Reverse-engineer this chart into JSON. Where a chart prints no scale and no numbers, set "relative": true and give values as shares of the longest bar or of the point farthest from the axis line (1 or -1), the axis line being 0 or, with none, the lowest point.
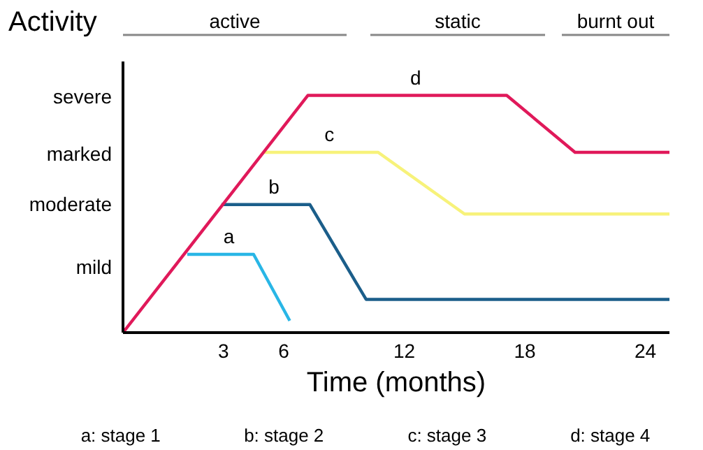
{
  "chart_data": {
    "type": "line",
    "ylabel": "Activity",
    "xlabel": "Time (months)",
    "relative": true,
    "xlim": [
      -2,
      25.2
    ],
    "xticks": [
      3,
      6,
      12,
      18,
      24
    ],
    "series": [
      {
        "name": "a",
        "color": "#29b6e6",
        "x": [
          1.2,
          4.5,
          6.3
        ],
        "values": [
          0.33,
          0.33,
          0.05
        ]
      },
      {
        "name": "b",
        "color": "#1b5e8a",
        "x": [
          2.9,
          7.3,
          10.1,
          25.2
        ],
        "values": [
          0.54,
          0.54,
          0.14,
          0.14
        ]
      },
      {
        "name": "c",
        "color": "#f7f27a",
        "x": [
          5.0,
          10.7,
          15.0,
          25.2
        ],
        "values": [
          0.76,
          0.76,
          0.5,
          0.5
        ]
      },
      {
        "name": "d",
        "color": "#e0195a",
        "x": [
          -2,
          7.2,
          17.1,
          20.5,
          25.2
        ],
        "values": [
          0,
          1,
          1,
          0.76,
          0.76
        ]
      }
    ],
    "annotations": [
      "active",
      "static",
      "burnt out",
      "severe",
      "marked",
      "moderate",
      "mild",
      "a: stage 1",
      "b: stage 2",
      "c: stage 3",
      "d: stage 4"
    ],
    "grid": false,
    "legend": false,
    "marker": "none",
    "line_style": "solid"
  }
}
